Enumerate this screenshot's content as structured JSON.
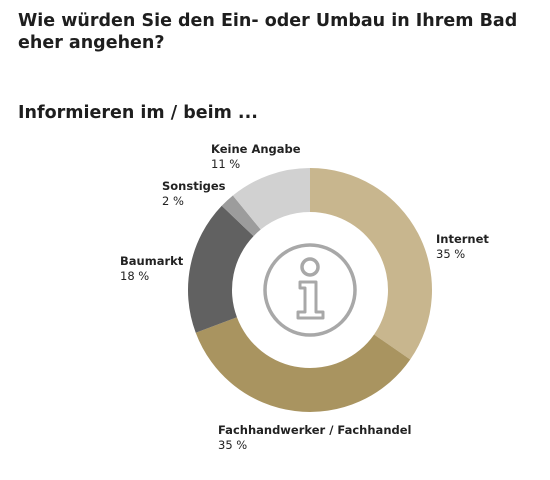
{
  "title": "Wie würden Sie den Ein- oder Umbau in Ihrem Bad eher angehen?",
  "subtitle": "Informieren im / beim ...",
  "chart_data": {
    "type": "pie",
    "donut": true,
    "center_icon": "info-icon",
    "slices": [
      {
        "label": "Internet",
        "value": 35,
        "value_label": "35 %",
        "color": "#c8b68e"
      },
      {
        "label": "Fachhandwerker / Fachhandel",
        "value": 35,
        "value_label": "35 %",
        "color": "#a99460"
      },
      {
        "label": "Baumarkt",
        "value": 18,
        "value_label": "18 %",
        "color": "#616161"
      },
      {
        "label": "Sonstiges",
        "value": 2,
        "value_label": "2 %",
        "color": "#9c9c9c"
      },
      {
        "label": "Keine Angabe",
        "value": 11,
        "value_label": "11 %",
        "color": "#d1d1d1"
      }
    ]
  }
}
